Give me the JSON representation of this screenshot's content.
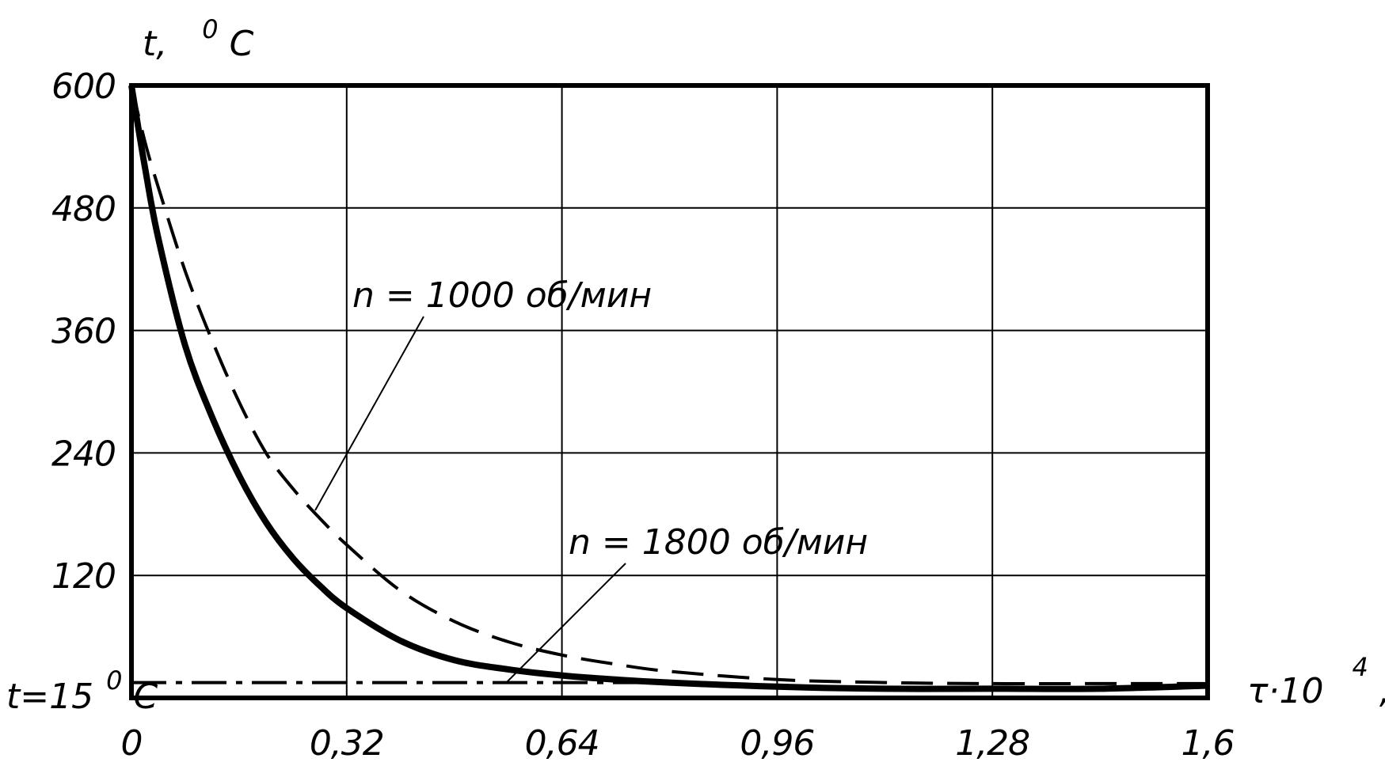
{
  "chart_data": {
    "type": "line",
    "xlabel": {
      "main": "τ·10",
      "exp": "4",
      "unit": ", с"
    },
    "ylabel": {
      "main": "t,",
      "exp": "0",
      "unit": "С"
    },
    "xlim": [
      0,
      1.6
    ],
    "ylim": [
      0,
      600
    ],
    "x_ticks": [
      0,
      0.32,
      0.64,
      0.96,
      1.28,
      1.6
    ],
    "x_tick_labels": [
      "0",
      "0,32",
      "0,64",
      "0,96",
      "1,28",
      "1,6"
    ],
    "y_ticks": [
      120,
      240,
      360,
      480,
      600
    ],
    "y_tick_labels": [
      "120",
      "240",
      "360",
      "480",
      "600"
    ],
    "grid": true,
    "series": [
      {
        "name": "n = 1000 об/мин",
        "style": "dashed",
        "x": [
          0,
          0.02,
          0.04,
          0.08,
          0.12,
          0.16,
          0.2,
          0.24,
          0.28,
          0.32,
          0.4,
          0.48,
          0.56,
          0.64,
          0.72,
          0.8,
          0.96,
          1.12,
          1.28,
          1.44,
          1.6
        ],
        "y": [
          600,
          545,
          500,
          418,
          350,
          290,
          240,
          205,
          176,
          150,
          105,
          75,
          55,
          42,
          33,
          26,
          18,
          15,
          14,
          14,
          14
        ]
      },
      {
        "name": "n = 1800 об/мин",
        "style": "solid",
        "x": [
          0,
          0.02,
          0.04,
          0.08,
          0.12,
          0.16,
          0.2,
          0.24,
          0.28,
          0.32,
          0.4,
          0.48,
          0.56,
          0.64,
          0.72,
          0.8,
          0.96,
          1.12,
          1.28,
          1.44,
          1.6
        ],
        "y": [
          600,
          520,
          450,
          345,
          275,
          218,
          172,
          137,
          110,
          88,
          56,
          37,
          28,
          22,
          18,
          15,
          11,
          9,
          9,
          9,
          12
        ]
      }
    ],
    "reference_line": {
      "label": {
        "main": "t=15",
        "exp": "0",
        "unit": "С"
      },
      "y": 15,
      "style": "dash-dot"
    },
    "annotations": [
      {
        "text": "n = 1000 об/мин",
        "series": 0
      },
      {
        "text": "n = 1800 об/мин",
        "series": 1
      }
    ]
  }
}
